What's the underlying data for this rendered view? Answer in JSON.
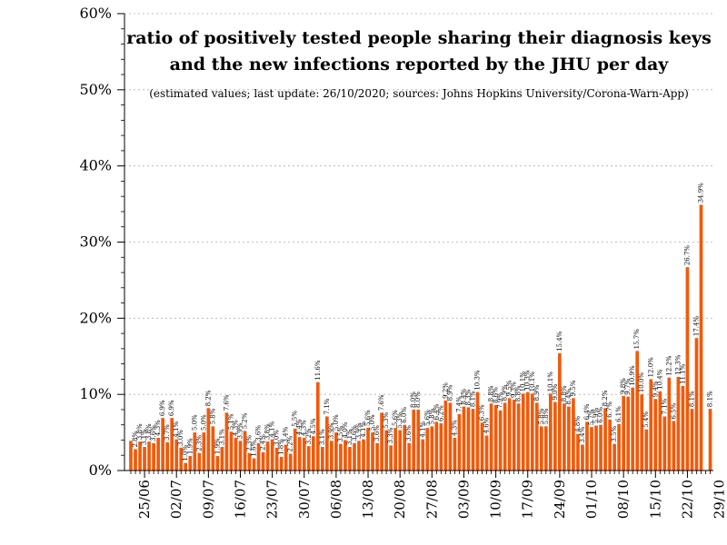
{
  "chart_data": {
    "type": "bar",
    "title_line1": "ratio of positively tested people sharing their diagnosis keys",
    "title_line2": "and the new infections reported by the JHU per day",
    "subtitle": "(estimated values; last update: 26/10/2020; sources: Johns Hopkins University/Corona-Warn-App)",
    "ylim": [
      0,
      60
    ],
    "y_ticks": [
      0,
      10,
      20,
      30,
      40,
      50,
      60
    ],
    "y_tick_labels": [
      "0%",
      "10%",
      "20%",
      "30%",
      "40%",
      "50%",
      "60%"
    ],
    "x_tick_labels": [
      "25/06",
      "02/07",
      "09/07",
      "16/07",
      "23/07",
      "30/07",
      "06/08",
      "13/08",
      "20/08",
      "27/08",
      "03/09",
      "10/09",
      "17/09",
      "24/09",
      "01/10",
      "08/10",
      "15/10",
      "22/10",
      "29/10"
    ],
    "bar_color": "#f15a0a",
    "grid": "horizontal dotted",
    "values": [
      3.9,
      2.8,
      3.8,
      3.1,
      3.8,
      3.6,
      4.3,
      6.9,
      3.7,
      6.9,
      4.1,
      3.0,
      1.0,
      1.9,
      5.0,
      2.3,
      5.0,
      8.2,
      5.8,
      1.9,
      3.1,
      7.6,
      5.1,
      4.3,
      3.9,
      5.2,
      2.3,
      1.6,
      3.6,
      2.4,
      3.8,
      4.1,
      3.0,
      1.8,
      3.4,
      2.2,
      5.5,
      4.4,
      4.3,
      3.2,
      4.5,
      11.6,
      3.1,
      7.1,
      3.9,
      5.0,
      3.5,
      4.0,
      3.1,
      3.6,
      3.9,
      4.1,
      5.6,
      5.0,
      3.6,
      7.6,
      5.3,
      3.3,
      5.6,
      5.3,
      6.0,
      3.6,
      8.0,
      8.0,
      4.1,
      5.6,
      5.8,
      6.4,
      6.2,
      9.2,
      8.9,
      4.3,
      7.4,
      8.4,
      8.3,
      8.1,
      10.3,
      6.3,
      4.6,
      8.8,
      8.6,
      7.9,
      8.9,
      9.5,
      9.3,
      8.8,
      10.1,
      10.3,
      10.1,
      8.9,
      5.8,
      5.8,
      10.1,
      9.0,
      15.4,
      8.8,
      8.4,
      9.5,
      4.8,
      3.4,
      6.4,
      5.7,
      5.9,
      6.0,
      8.2,
      6.7,
      3.5,
      6.1,
      9.8,
      9.7,
      10.9,
      15.7,
      10.0,
      5.4,
      12.0,
      9.4,
      10.4,
      7.1,
      12.2,
      6.5,
      12.3,
      11.1,
      26.7,
      8.1,
      17.4,
      34.9,
      null,
      8.1
    ],
    "data_labels": [
      "",
      "2.8%",
      "3.8%",
      "3.1%",
      "3.8%",
      "3.6%",
      "4.3%",
      "6.9%",
      "3.7%",
      "6.9%",
      "4.1%",
      "3.0%",
      "1.0%",
      "1.9%",
      "5.0%",
      "2.3%",
      "5.0%",
      "8.2%",
      "5.8%",
      "1.9%",
      "3.1%",
      "7.6%",
      "5.1%",
      "4.3%",
      "3.9%",
      "5.2%",
      "2.3%",
      "1.6%",
      "3.6%",
      "2.4%",
      "3.8%",
      "4.1%",
      "3.0%",
      "1.8%",
      "3.4%",
      "2.2%",
      "5.5%",
      "4.4%",
      "4.3%",
      "3.2%",
      "4.5%",
      "11.6%",
      "3.1%",
      "7.1%",
      "3.9%",
      "5.0%",
      "3.5%",
      "4.0%",
      "3.1%",
      "3.6%",
      "3.9%",
      "4.1%",
      "5.6%",
      "5.0%",
      "3.6%",
      "7.6%",
      "5.3%",
      "3.3%",
      "5.6%",
      "5.3%",
      "6.0%",
      "3.6%",
      "8.0%",
      "8.0%",
      "4.1%",
      "5.6%",
      "5.8%",
      "6.4%",
      "6.2%",
      "9.2%",
      "8.9%",
      "4.3%",
      "7.4%",
      "8.4%",
      "8.3%",
      "8.1%",
      "10.3%",
      "6.3%",
      "4.6%",
      "8.8%",
      "8.6%",
      "7.9%",
      "8.9%",
      "9.5%",
      "9.3%",
      "8.8%",
      "10.1%",
      "10.3%",
      "10.1%",
      "8.9%",
      "5.8%",
      "5.8%",
      "10.1%",
      "9.0%",
      "15.4%",
      "8.8%",
      "8.4%",
      "9.5%",
      "4.8%",
      "3.4%",
      "6.4%",
      "5.7%",
      "5.9%",
      "6.0%",
      "8.2%",
      "6.7%",
      "3.5%",
      "6.1%",
      "9.8%",
      "9.7%",
      "10.9%",
      "15.7%",
      "10.0%",
      "5.4%",
      "12.0%",
      "9.4%",
      "10.4%",
      "7.1%",
      "12.2%",
      "6.5%",
      "12.3%",
      "11.1%",
      "26.7%",
      "8.1%",
      "17.4%",
      "34.9%",
      "",
      "8.1%"
    ]
  }
}
